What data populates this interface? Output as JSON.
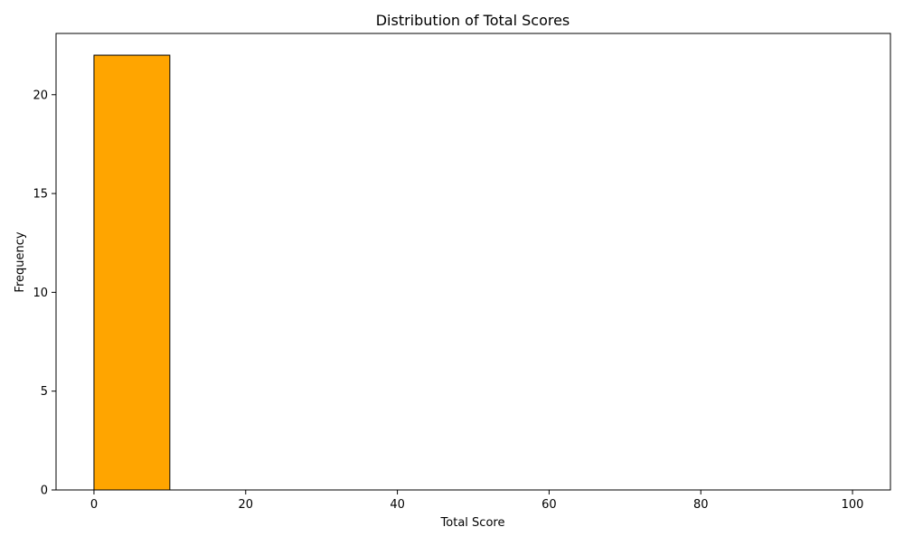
{
  "chart_data": {
    "type": "bar",
    "title": "Distribution of Total Scores",
    "xlabel": "Total Score",
    "ylabel": "Frequency",
    "xlim": [
      -5,
      105
    ],
    "ylim": [
      0,
      23.1
    ],
    "xticks": [
      0,
      20,
      40,
      60,
      80,
      100
    ],
    "yticks": [
      0,
      5,
      10,
      15,
      20
    ],
    "bins": [
      {
        "start": 0,
        "end": 10,
        "count": 22
      },
      {
        "start": 10,
        "end": 20,
        "count": 0
      },
      {
        "start": 20,
        "end": 30,
        "count": 0
      },
      {
        "start": 30,
        "end": 40,
        "count": 0
      },
      {
        "start": 40,
        "end": 50,
        "count": 0
      },
      {
        "start": 50,
        "end": 60,
        "count": 0
      },
      {
        "start": 60,
        "end": 70,
        "count": 0
      },
      {
        "start": 70,
        "end": 80,
        "count": 0
      },
      {
        "start": 80,
        "end": 90,
        "count": 0
      },
      {
        "start": 90,
        "end": 100,
        "count": 0
      }
    ],
    "bar_color": "#ffa500",
    "edge_color": "#000000",
    "grid": false,
    "legend": "none"
  }
}
